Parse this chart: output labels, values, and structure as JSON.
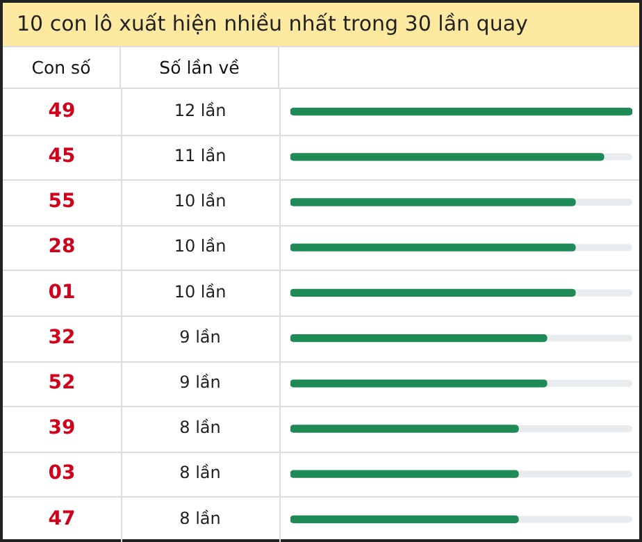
{
  "chart_data": {
    "type": "bar",
    "orientation": "horizontal",
    "title": "10 con lô xuất hiện nhiều nhất trong 30 lần quay",
    "ylabel": "Con số",
    "xlabel": "Số lần về",
    "categories": [
      "49",
      "45",
      "55",
      "28",
      "01",
      "32",
      "52",
      "39",
      "03",
      "47"
    ],
    "values": [
      12,
      11,
      10,
      10,
      10,
      9,
      9,
      8,
      8,
      8
    ],
    "value_labels": [
      "12 lần",
      "11 lần",
      "10 lần",
      "10 lần",
      "10 lần",
      "9 lần",
      "9 lần",
      "8 lần",
      "8 lần",
      "8 lần"
    ],
    "color": "#1e8a56",
    "xlim": [
      0,
      12
    ]
  }
}
